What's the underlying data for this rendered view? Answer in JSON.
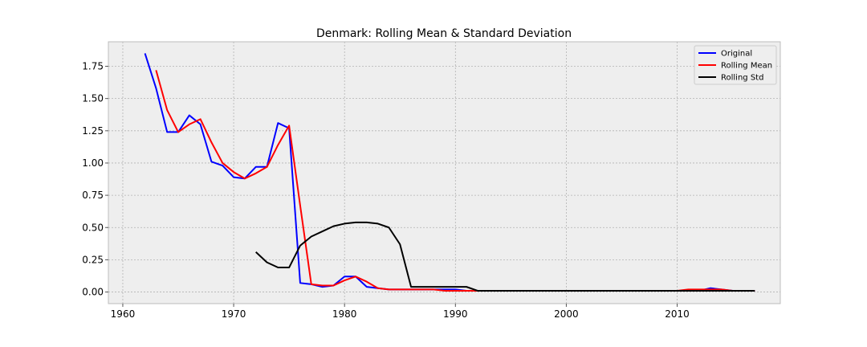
{
  "chart_data": {
    "type": "line",
    "title": "Denmark: Rolling Mean & Standard Deviation",
    "xlabel": "",
    "ylabel": "",
    "xlim": [
      1958.7,
      2019.3
    ],
    "ylim": [
      -0.09,
      1.94
    ],
    "x_ticks": [
      1960,
      1970,
      1980,
      1990,
      2000,
      2010
    ],
    "y_ticks": [
      0.0,
      0.25,
      0.5,
      0.75,
      1.0,
      1.25,
      1.5,
      1.75
    ],
    "y_tick_labels": [
      "0.00",
      "0.25",
      "0.50",
      "0.75",
      "1.00",
      "1.25",
      "1.50",
      "1.75"
    ],
    "grid": true,
    "legend_position": "top-right",
    "series": [
      {
        "name": "Original",
        "color": "#0000ff",
        "points": [
          [
            1962,
            1.85
          ],
          [
            1963,
            1.58
          ],
          [
            1964,
            1.24
          ],
          [
            1965,
            1.24
          ],
          [
            1966,
            1.37
          ],
          [
            1967,
            1.3
          ],
          [
            1968,
            1.01
          ],
          [
            1969,
            0.98
          ],
          [
            1970,
            0.89
          ],
          [
            1971,
            0.88
          ],
          [
            1972,
            0.97
          ],
          [
            1973,
            0.97
          ],
          [
            1974,
            1.31
          ],
          [
            1975,
            1.27
          ],
          [
            1976,
            0.07
          ],
          [
            1977,
            0.06
          ],
          [
            1978,
            0.04
          ],
          [
            1979,
            0.05
          ],
          [
            1980,
            0.12
          ],
          [
            1981,
            0.12
          ],
          [
            1982,
            0.04
          ],
          [
            1983,
            0.03
          ],
          [
            1984,
            0.02
          ],
          [
            1985,
            0.02
          ],
          [
            1986,
            0.02
          ],
          [
            1987,
            0.02
          ],
          [
            1988,
            0.02
          ],
          [
            1989,
            0.02
          ],
          [
            1990,
            0.02
          ],
          [
            1991,
            0.01
          ],
          [
            1992,
            0.01
          ],
          [
            1993,
            0.01
          ],
          [
            1994,
            0.01
          ],
          [
            1995,
            0.01
          ],
          [
            1996,
            0.01
          ],
          [
            1997,
            0.01
          ],
          [
            1998,
            0.01
          ],
          [
            1999,
            0.01
          ],
          [
            2000,
            0.01
          ],
          [
            2001,
            0.01
          ],
          [
            2002,
            0.01
          ],
          [
            2003,
            0.01
          ],
          [
            2004,
            0.01
          ],
          [
            2005,
            0.01
          ],
          [
            2006,
            0.01
          ],
          [
            2007,
            0.01
          ],
          [
            2008,
            0.01
          ],
          [
            2009,
            0.01
          ],
          [
            2010,
            0.01
          ],
          [
            2011,
            0.01
          ],
          [
            2012,
            0.01
          ],
          [
            2013,
            0.03
          ],
          [
            2014,
            0.02
          ],
          [
            2015,
            0.01
          ],
          [
            2016,
            0.01
          ],
          [
            2017,
            0.01
          ]
        ]
      },
      {
        "name": "Rolling Mean",
        "color": "#ff0000",
        "points": [
          [
            1963,
            1.72
          ],
          [
            1964,
            1.41
          ],
          [
            1965,
            1.24
          ],
          [
            1966,
            1.3
          ],
          [
            1967,
            1.34
          ],
          [
            1968,
            1.16
          ],
          [
            1969,
            1.0
          ],
          [
            1970,
            0.93
          ],
          [
            1971,
            0.88
          ],
          [
            1972,
            0.92
          ],
          [
            1973,
            0.97
          ],
          [
            1974,
            1.14
          ],
          [
            1975,
            1.29
          ],
          [
            1976,
            0.67
          ],
          [
            1977,
            0.06
          ],
          [
            1978,
            0.05
          ],
          [
            1979,
            0.05
          ],
          [
            1980,
            0.09
          ],
          [
            1981,
            0.12
          ],
          [
            1982,
            0.08
          ],
          [
            1983,
            0.03
          ],
          [
            1984,
            0.02
          ],
          [
            1985,
            0.02
          ],
          [
            1986,
            0.02
          ],
          [
            1987,
            0.02
          ],
          [
            1988,
            0.02
          ],
          [
            1989,
            0.01
          ],
          [
            1990,
            0.01
          ],
          [
            1991,
            0.01
          ],
          [
            1992,
            0.01
          ],
          [
            1993,
            0.01
          ],
          [
            1994,
            0.01
          ],
          [
            1995,
            0.01
          ],
          [
            1996,
            0.01
          ],
          [
            1997,
            0.01
          ],
          [
            1998,
            0.01
          ],
          [
            1999,
            0.01
          ],
          [
            2000,
            0.01
          ],
          [
            2001,
            0.01
          ],
          [
            2002,
            0.01
          ],
          [
            2003,
            0.01
          ],
          [
            2004,
            0.01
          ],
          [
            2005,
            0.01
          ],
          [
            2006,
            0.01
          ],
          [
            2007,
            0.01
          ],
          [
            2008,
            0.01
          ],
          [
            2009,
            0.01
          ],
          [
            2010,
            0.01
          ],
          [
            2011,
            0.02
          ],
          [
            2012,
            0.02
          ],
          [
            2013,
            0.02
          ],
          [
            2014,
            0.02
          ],
          [
            2015,
            0.01
          ],
          [
            2016,
            0.01
          ],
          [
            2017,
            0.01
          ]
        ]
      },
      {
        "name": "Rolling Std",
        "color": "#000000",
        "points": [
          [
            1972,
            0.31
          ],
          [
            1973,
            0.23
          ],
          [
            1974,
            0.19
          ],
          [
            1975,
            0.19
          ],
          [
            1976,
            0.36
          ],
          [
            1977,
            0.43
          ],
          [
            1978,
            0.47
          ],
          [
            1979,
            0.51
          ],
          [
            1980,
            0.53
          ],
          [
            1981,
            0.54
          ],
          [
            1982,
            0.54
          ],
          [
            1983,
            0.53
          ],
          [
            1984,
            0.5
          ],
          [
            1985,
            0.37
          ],
          [
            1986,
            0.04
          ],
          [
            1987,
            0.04
          ],
          [
            1988,
            0.04
          ],
          [
            1989,
            0.04
          ],
          [
            1990,
            0.04
          ],
          [
            1991,
            0.04
          ],
          [
            1992,
            0.01
          ],
          [
            1993,
            0.01
          ],
          [
            1994,
            0.01
          ],
          [
            1995,
            0.01
          ],
          [
            1996,
            0.01
          ],
          [
            1997,
            0.01
          ],
          [
            1998,
            0.01
          ],
          [
            1999,
            0.01
          ],
          [
            2000,
            0.01
          ],
          [
            2001,
            0.01
          ],
          [
            2002,
            0.01
          ],
          [
            2003,
            0.01
          ],
          [
            2004,
            0.01
          ],
          [
            2005,
            0.01
          ],
          [
            2006,
            0.01
          ],
          [
            2007,
            0.01
          ],
          [
            2008,
            0.01
          ],
          [
            2009,
            0.01
          ],
          [
            2010,
            0.01
          ],
          [
            2011,
            0.01
          ],
          [
            2012,
            0.01
          ],
          [
            2013,
            0.01
          ],
          [
            2014,
            0.01
          ],
          [
            2015,
            0.01
          ],
          [
            2016,
            0.01
          ],
          [
            2017,
            0.01
          ]
        ]
      }
    ]
  },
  "colors": {
    "axes_background": "#eeeeee",
    "grid": "#b2b2b2",
    "axes_edge": "#bcbcbc"
  }
}
